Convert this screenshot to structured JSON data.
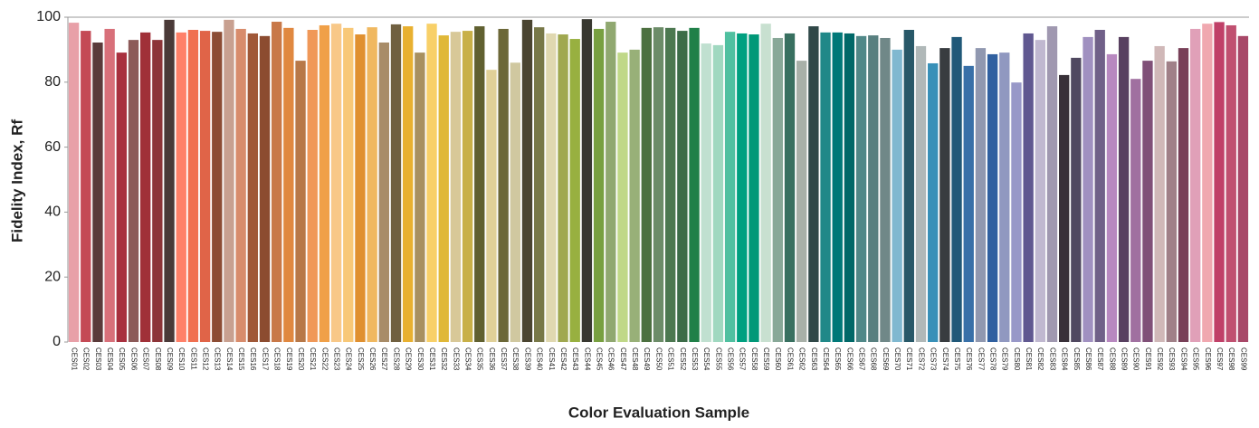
{
  "chart_data": {
    "type": "bar",
    "x_label": "Color Evaluation Sample",
    "y_label": "Fidelity Index, Rf",
    "categories": [
      "CES01",
      "CES02",
      "CES03",
      "CES04",
      "CES05",
      "CES06",
      "CES07",
      "CES08",
      "CES09",
      "CES10",
      "CES11",
      "CES12",
      "CES13",
      "CES14",
      "CES15",
      "CES16",
      "CES17",
      "CES18",
      "CES19",
      "CES20",
      "CES21",
      "CES22",
      "CES23",
      "CES24",
      "CES25",
      "CES26",
      "CES27",
      "CES28",
      "CES29",
      "CES30",
      "CES31",
      "CES32",
      "CES33",
      "CES34",
      "CES35",
      "CES36",
      "CES37",
      "CES38",
      "CES39",
      "CES40",
      "CES41",
      "CES42",
      "CES43",
      "CES44",
      "CES45",
      "CES46",
      "CES47",
      "CES48",
      "CES49",
      "CES50",
      "CES51",
      "CES52",
      "CES53",
      "CES54",
      "CES55",
      "CES56",
      "CES57",
      "CES58",
      "CES59",
      "CES60",
      "CES61",
      "CES62",
      "CES63",
      "CES64",
      "CES65",
      "CES66",
      "CES67",
      "CES68",
      "CES69",
      "CES70",
      "CES71",
      "CES72",
      "CES73",
      "CES74",
      "CES75",
      "CES76",
      "CES77",
      "CES78",
      "CES79",
      "CES80",
      "CES81",
      "CES82",
      "CES83",
      "CES84",
      "CES85",
      "CES86",
      "CES87",
      "CES88",
      "CES89",
      "CES90",
      "CES91",
      "CES92",
      "CES93",
      "CES94",
      "CES95",
      "CES96",
      "CES97",
      "CES98",
      "CES99"
    ],
    "values": [
      98.3,
      95.8,
      92.2,
      96.4,
      89.1,
      93,
      95.3,
      93,
      99.2,
      95.3,
      96.1,
      95.8,
      95.5,
      99.2,
      96.4,
      95,
      94.2,
      98.6,
      96.7,
      86.6,
      96.1,
      97.5,
      98,
      96.7,
      94.7,
      96.9,
      92.2,
      97.8,
      97.2,
      89.1,
      98,
      94.4,
      95.5,
      95.8,
      97.2,
      83.8,
      96.4,
      86,
      99.2,
      96.9,
      95,
      94.7,
      93.3,
      99.4,
      96.4,
      98.6,
      89.1,
      90,
      96.7,
      96.9,
      96.7,
      95.8,
      96.7,
      91.9,
      91.4,
      95.5,
      95,
      94.7,
      98,
      93.6,
      95,
      86.6,
      97.2,
      95.3,
      95.3,
      95,
      94.2,
      94.4,
      93.6,
      90,
      96.1,
      91.1,
      85.8,
      90.5,
      93.9,
      85,
      90.5,
      88.6,
      89.1,
      79.9,
      95,
      93,
      97.2,
      82.2,
      87.5,
      93.9,
      96.1,
      88.6,
      93.9,
      81,
      86.6,
      91.1,
      86.4,
      90.5,
      96.4,
      98,
      98.5,
      97.5,
      94.2
    ],
    "colors": [
      "#e8a0a8",
      "#c44a55",
      "#5a3a3a",
      "#d8707a",
      "#a8303e",
      "#8c5a58",
      "#a03038",
      "#8c3438",
      "#4a3a38",
      "#ff8068",
      "#f07050",
      "#e06448",
      "#8c4c34",
      "#c8a090",
      "#d88c6c",
      "#a05838",
      "#8c4c30",
      "#c87848",
      "#e08840",
      "#b87848",
      "#f09858",
      "#f0a048",
      "#f8c888",
      "#f8c878",
      "#e09030",
      "#f0b860",
      "#a88c68",
      "#706040",
      "#e8b030",
      "#a89060",
      "#f8d068",
      "#e0b838",
      "#d8c898",
      "#c8b048",
      "#606030",
      "#e0d098",
      "#6c6838",
      "#d0c8a0",
      "#4a4430",
      "#787848",
      "#e0d8b0",
      "#a0a850",
      "#98b040",
      "#383830",
      "#78a040",
      "#90a870",
      "#c0d888",
      "#98b078",
      "#4c7040",
      "#6c8c68",
      "#4c7850",
      "#3c6c48",
      "#208048",
      "#c0e0d0",
      "#a0d8c0",
      "#50c0a0",
      "#00a080",
      "#009878",
      "#c8e0d0",
      "#88a898",
      "#387060",
      "#a8b0a8",
      "#304848",
      "#208888",
      "#007878",
      "#006868",
      "#508888",
      "#588080",
      "#708888",
      "#80b8d0",
      "#285868",
      "#b0b8b8",
      "#3890b8",
      "#383c40",
      "#205878",
      "#3870a8",
      "#9098b0",
      "#3060a0",
      "#9098c0",
      "#9898c8",
      "#605890",
      "#c0b8d0",
      "#a098b0",
      "#383038",
      "#504860",
      "#a090c0",
      "#706088",
      "#b888c0",
      "#584060",
      "#a070a0",
      "#805078",
      "#d0b8b8",
      "#a08088",
      "#784058",
      "#e0a0b8",
      "#f0a8b0",
      "#c04068",
      "#c05070",
      "#a84868"
    ],
    "ylim": [
      0,
      100
    ],
    "yticks": [
      0,
      20,
      40,
      60,
      80,
      100
    ],
    "grid": false
  }
}
